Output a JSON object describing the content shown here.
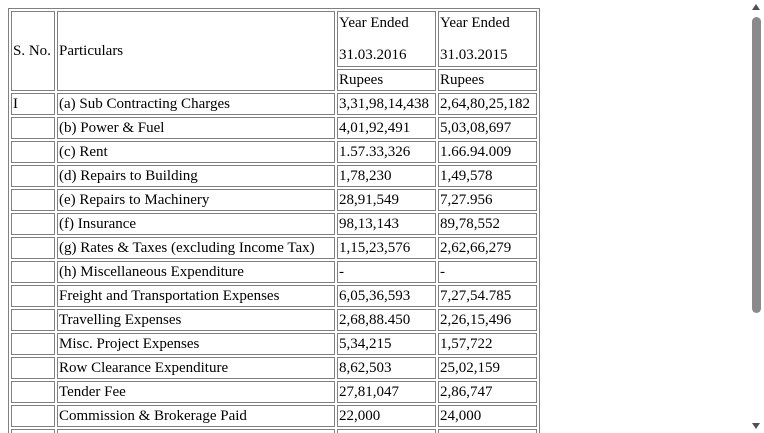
{
  "table": {
    "headers": {
      "sno": "S. No.",
      "particulars": "Particulars",
      "year1_line1": "Year Ended",
      "year1_line2": "31.03.2016",
      "year2_line1": "Year Ended",
      "year2_line2": "31.03.2015",
      "unit1": "Rupees",
      "unit2": "Rupees"
    },
    "rows": [
      {
        "sno": "I",
        "particular": "(a) Sub Contracting Charges",
        "y2016": "3,31,98,14,438",
        "y2015": "2,64,80,25,182"
      },
      {
        "sno": "",
        "particular": "(b) Power & Fuel",
        "y2016": "4,01,92,491",
        "y2015": "5,03,08,697"
      },
      {
        "sno": "",
        "particular": "(c) Rent",
        "y2016": "1.57.33,326",
        "y2015": "1.66.94.009"
      },
      {
        "sno": "",
        "particular": "(d) Repairs to Building",
        "y2016": "1,78,230",
        "y2015": "1,49,578"
      },
      {
        "sno": "",
        "particular": "(e) Repairs to Machinery",
        "y2016": "28,91,549",
        "y2015": "7,27.956"
      },
      {
        "sno": "",
        "particular": "(f) Insurance",
        "y2016": "98,13,143",
        "y2015": "89,78,552"
      },
      {
        "sno": "",
        "particular": "(g) Rates & Taxes (excluding Income Tax)",
        "y2016": "1,15,23,576",
        "y2015": "2,62,66,279"
      },
      {
        "sno": "",
        "particular": "(h) Miscellaneous Expenditure",
        "y2016": "-",
        "y2015": "-"
      },
      {
        "sno": "",
        "particular": "Freight and Transportation Expenses",
        "y2016": "6,05,36,593",
        "y2015": "7,27,54.785"
      },
      {
        "sno": "",
        "particular": "Travelling Expenses",
        "y2016": "2,68,88.450",
        "y2015": "2,26,15,496"
      },
      {
        "sno": "",
        "particular": "Misc. Project Expenses",
        "y2016": "5,34,215",
        "y2015": "1,57,722"
      },
      {
        "sno": "",
        "particular": "Row Clearance Expenditure",
        "y2016": "8,62,503",
        "y2015": "25,02,159"
      },
      {
        "sno": "",
        "particular": "Tender Fee",
        "y2016": "27,81,047",
        "y2015": "2,86,747"
      },
      {
        "sno": "",
        "particular": "Commission & Brokerage Paid",
        "y2016": "22,000",
        "y2015": "24,000"
      },
      {
        "sno": "",
        "particular": "",
        "y2016": "",
        "y2015": ""
      }
    ]
  },
  "scrollbar": {
    "up_icon": "chevron-up-icon",
    "down_icon": "chevron-down-icon"
  }
}
